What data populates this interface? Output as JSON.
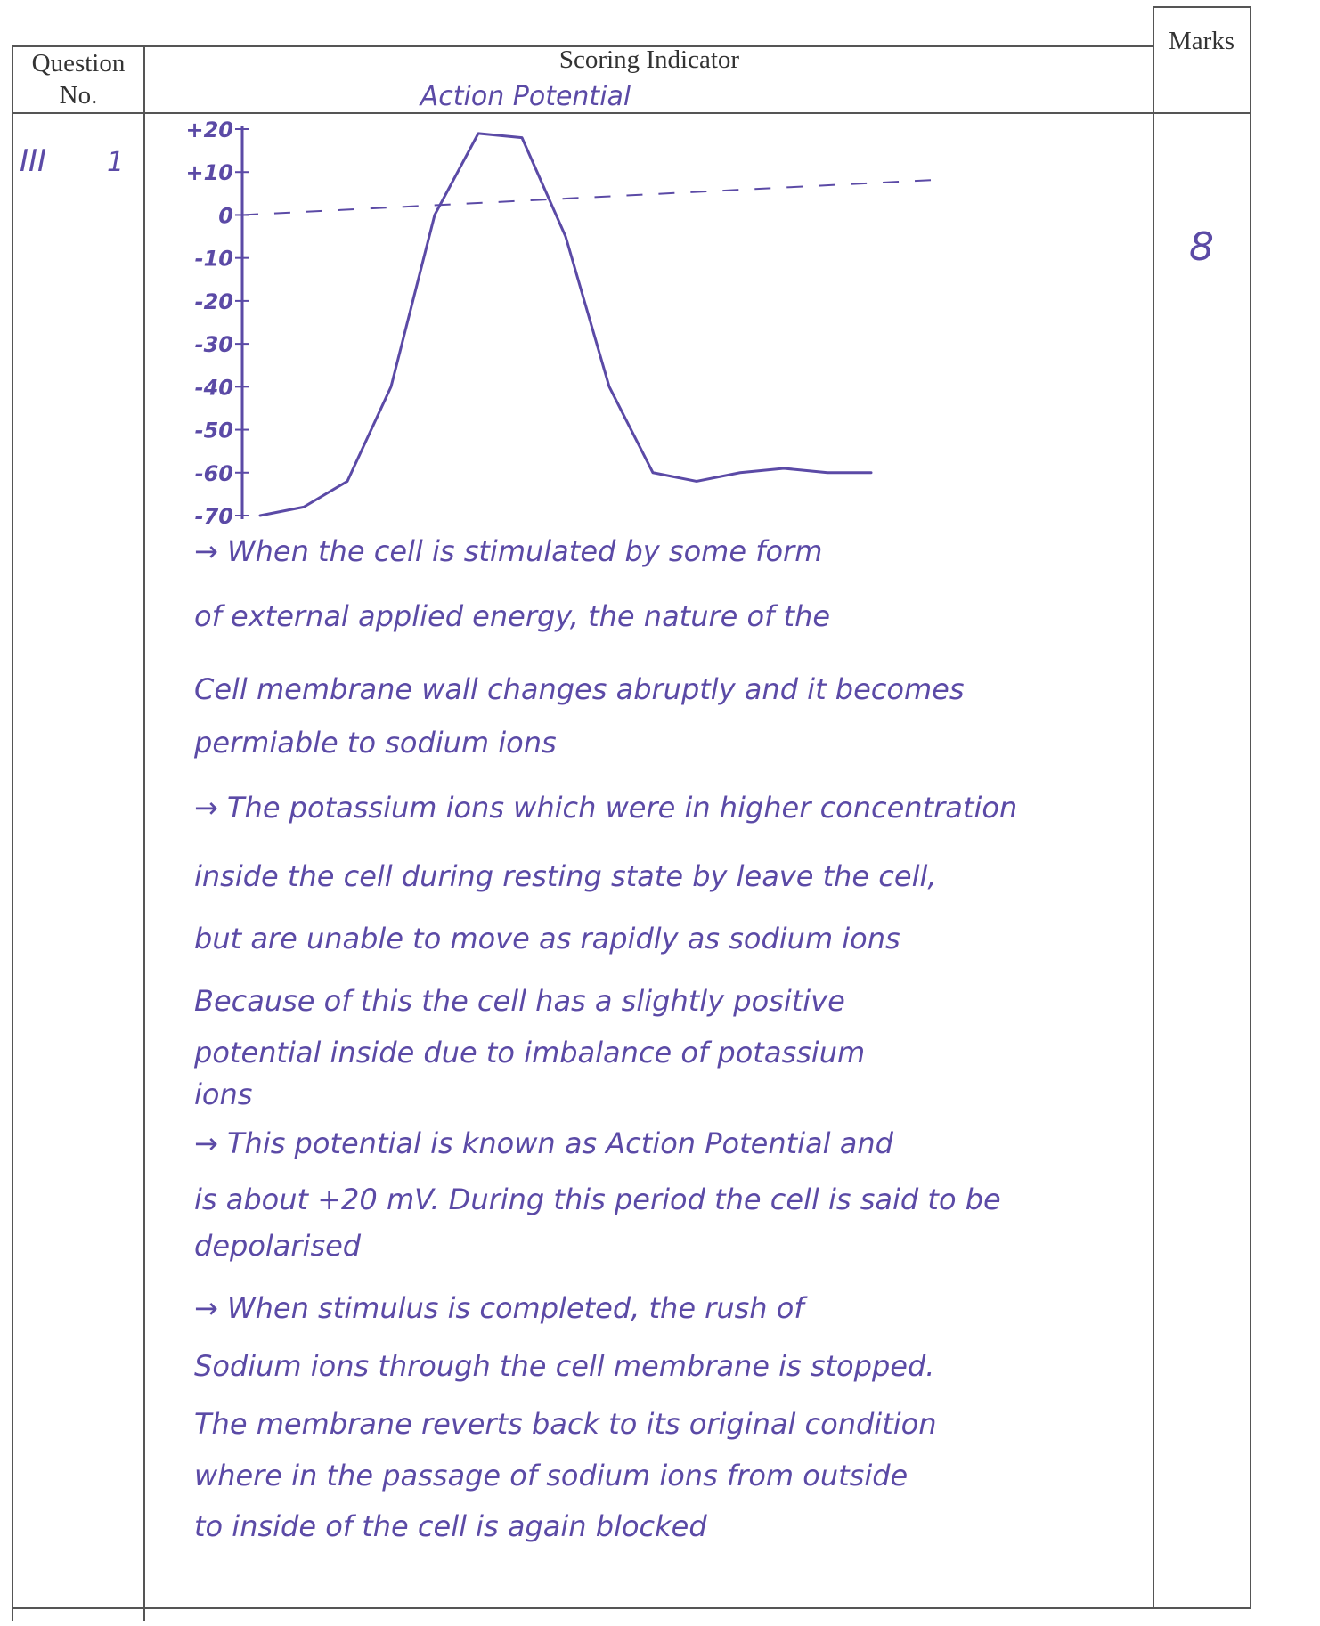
{
  "header": {
    "question_label": "Question",
    "no_label": "No.",
    "scoring_indicator": "Scoring Indicator",
    "marks": "Marks"
  },
  "row": {
    "section": "III",
    "question": "1",
    "marks": "8"
  },
  "chart_data": {
    "type": "line",
    "title": "Action Potential",
    "categories": [
      null,
      null,
      null,
      null,
      null,
      null,
      null,
      null,
      null,
      null,
      null,
      null,
      null,
      null,
      null
    ],
    "values": [
      -70,
      -68,
      -62,
      -40,
      0,
      19,
      18,
      -5,
      -40,
      -60,
      -62,
      -60,
      -59,
      -60,
      -60
    ],
    "color": "#5b4aa6",
    "ylim": [
      -70,
      20
    ],
    "yticks": [
      {
        "value": 20,
        "label": "+20"
      },
      {
        "value": 10,
        "label": "+10"
      },
      0,
      -10,
      -20,
      -30,
      -40,
      -50,
      -60,
      -70
    ]
  },
  "answer_lines": [
    "→ When the cell is stimulated by some form",
    "of external applied energy, the nature of the",
    "Cell membrane wall changes abruptly and it becomes",
    "permiable to sodium ions",
    "→ The potassium ions which were in higher concentration",
    "inside the cell during resting state by   leave the cell,",
    "but are unable to move as rapidly as sodium ions",
    "Because of this the cell has a slightly positive",
    "potential inside due to imbalance of potassium",
    "ions",
    "→ This potential is known as Action Potential and",
    "is about +20 mV. During this period the cell is said to be",
    "depolarised",
    "→ When stimulus is completed, the rush of",
    "Sodium ions through the cell membrane is stopped.",
    "The membrane reverts back to its original condition",
    "where in the passage of sodium ions from outside",
    "to inside of the cell is again blocked"
  ]
}
